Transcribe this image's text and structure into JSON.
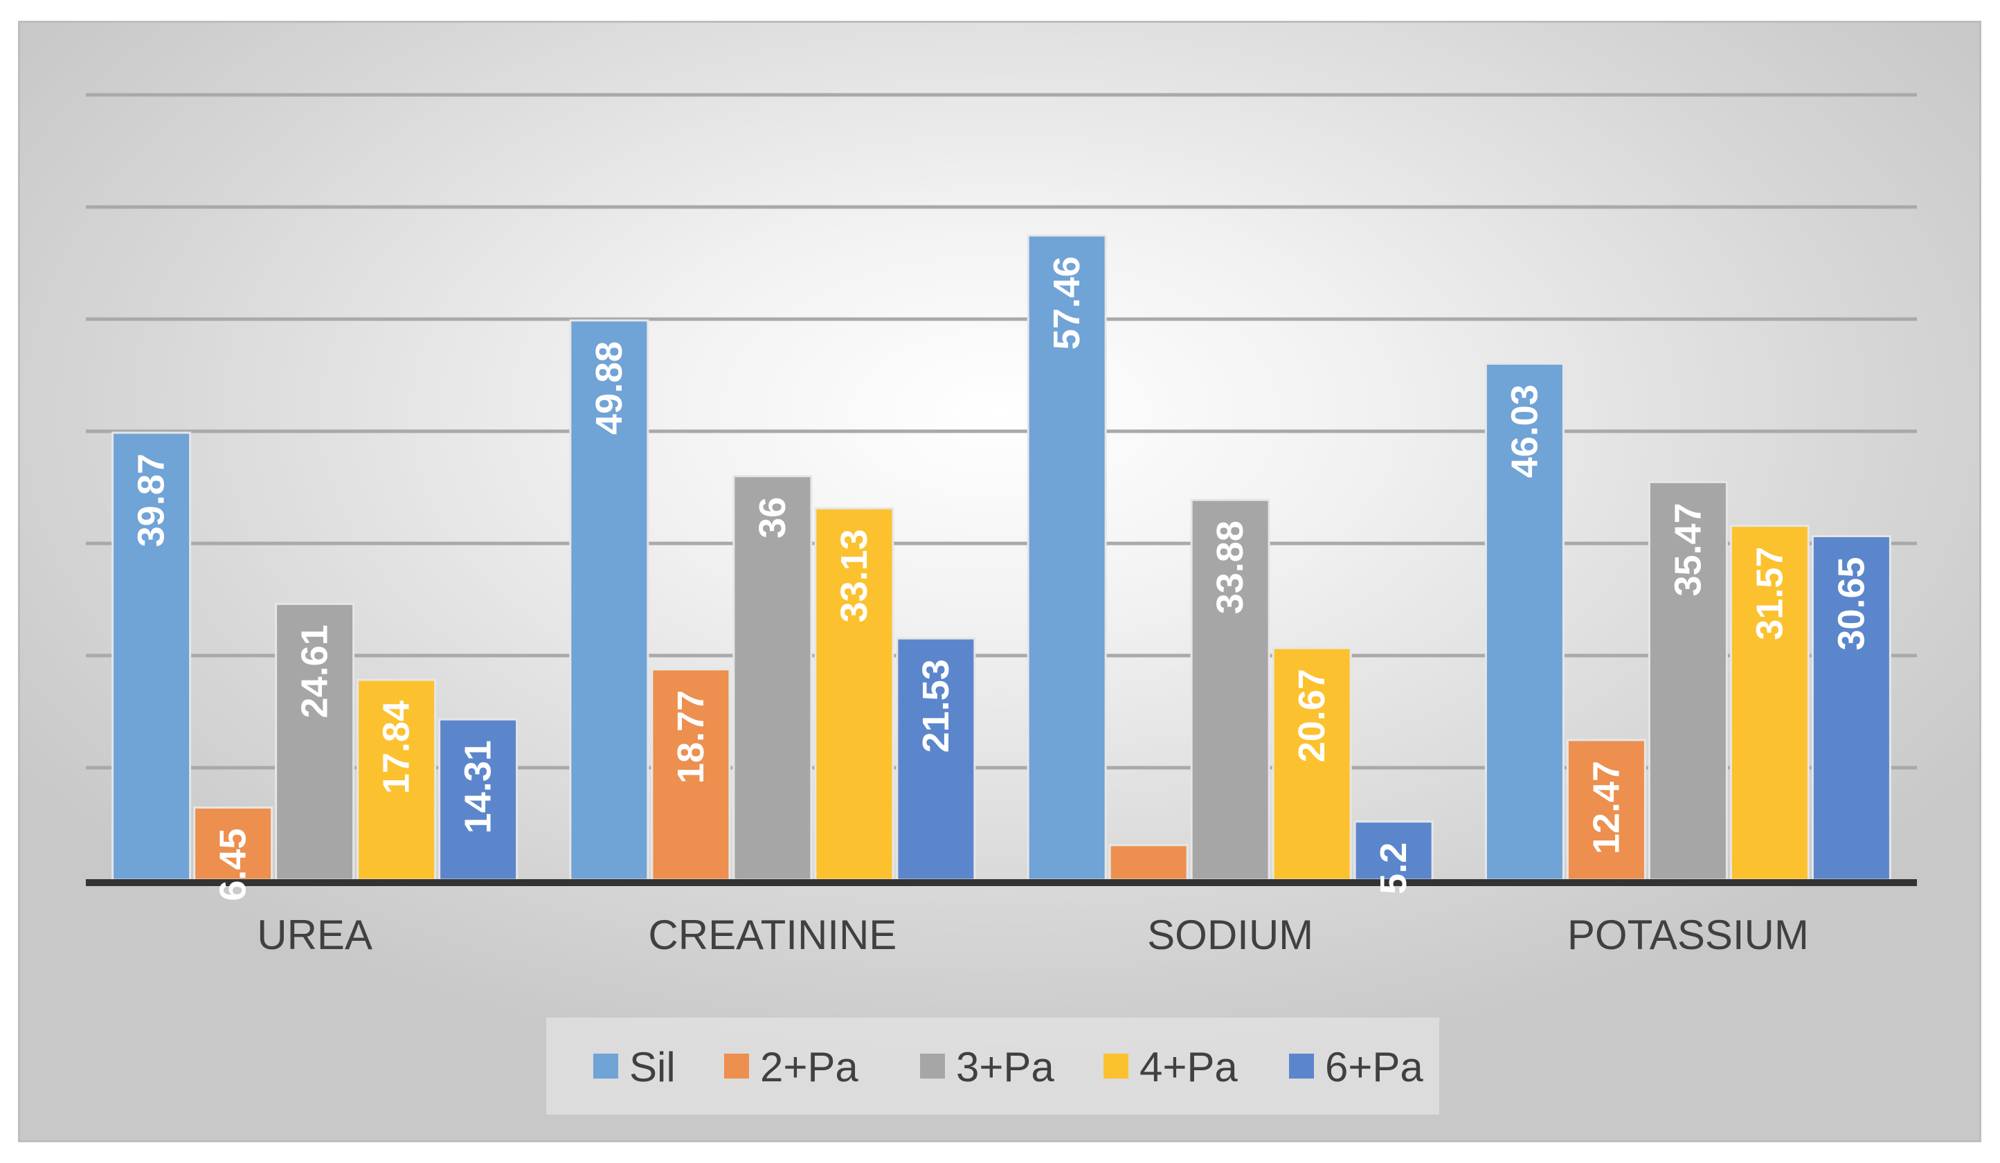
{
  "chart_data": {
    "type": "bar",
    "title": "",
    "xlabel": "",
    "ylabel": "",
    "ylim": [
      0,
      70
    ],
    "grid": true,
    "legend_position": "bottom",
    "categories": [
      "UREA",
      "CREATININE",
      "SODIUM",
      "POTASSIUM"
    ],
    "series": [
      {
        "name": "Sil",
        "color": "#70a3d6",
        "values": [
          39.87,
          49.88,
          57.46,
          46.03
        ],
        "labels": [
          "39.87",
          "49.88",
          "57.46",
          "46.03"
        ]
      },
      {
        "name": "2+Pa",
        "color": "#ed8f4e",
        "values": [
          6.45,
          18.77,
          3.1,
          12.47
        ],
        "labels": [
          "6.45",
          "18.77",
          "",
          "12.47"
        ]
      },
      {
        "name": "3+Pa",
        "color": "#a6a6a6",
        "values": [
          24.61,
          36,
          33.88,
          35.47
        ],
        "labels": [
          "24.61",
          "36",
          "33.88",
          "35.47"
        ]
      },
      {
        "name": "4+Pa",
        "color": "#fcc12e",
        "values": [
          17.84,
          33.13,
          20.67,
          31.57
        ],
        "labels": [
          "17.84",
          "33.13",
          "20.67",
          "31.57"
        ]
      },
      {
        "name": "6+Pa",
        "color": "#5b86cc",
        "values": [
          14.31,
          21.53,
          5.2,
          30.65
        ],
        "labels": [
          "14.31",
          "21.53",
          "5.2",
          "30.65"
        ]
      }
    ]
  }
}
